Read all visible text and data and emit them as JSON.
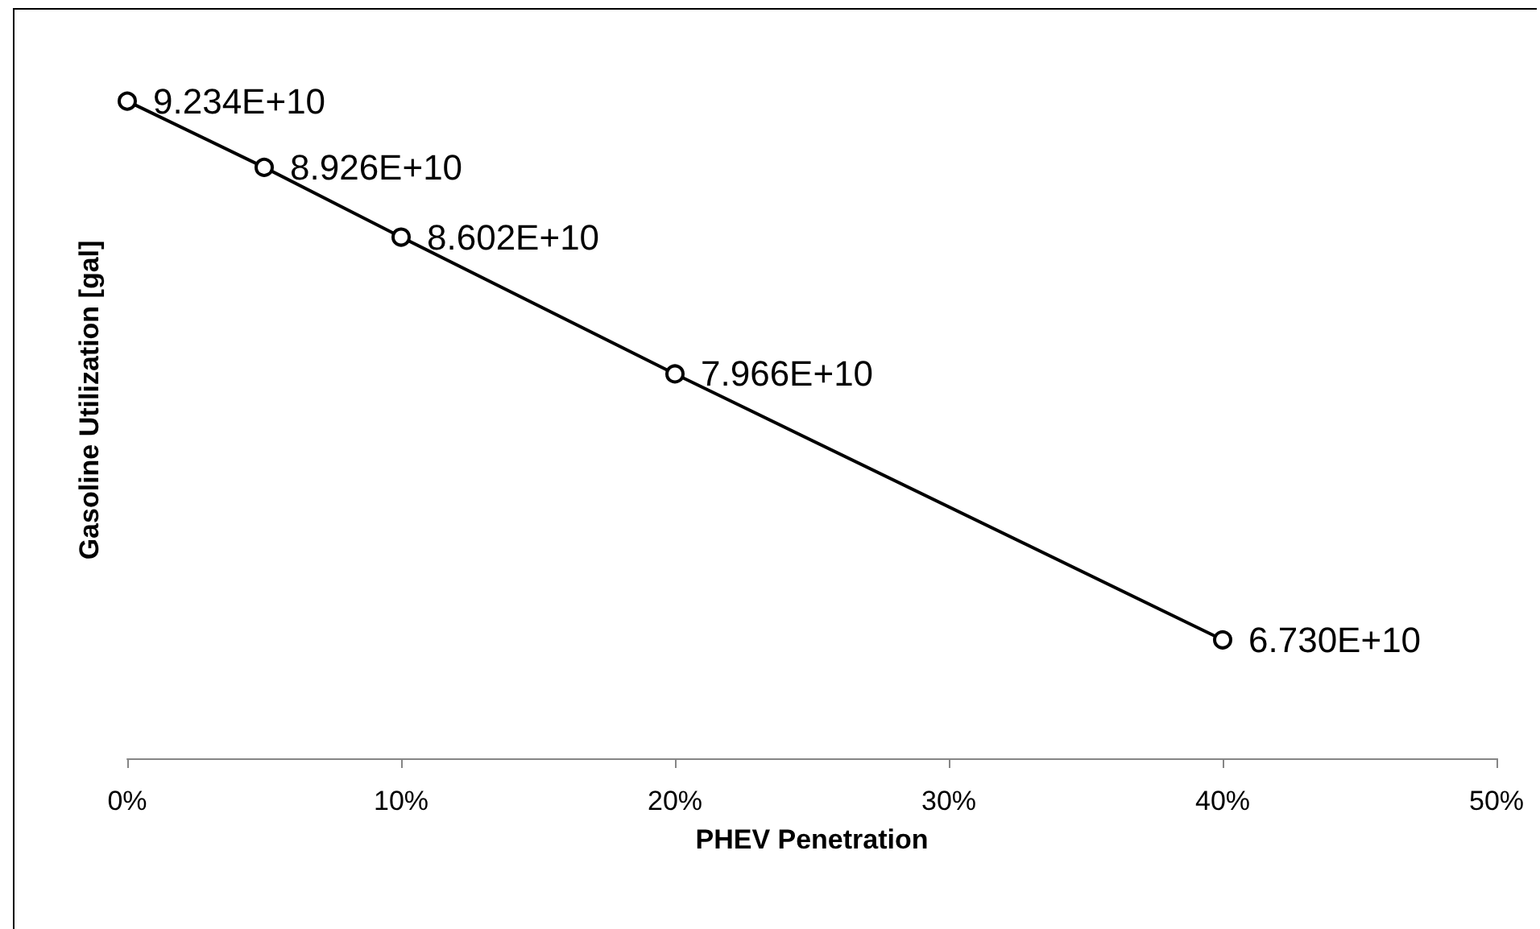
{
  "chart_data": {
    "type": "line",
    "xlabel": "PHEV Penetration",
    "ylabel": "Gasoline Utilization [gal]",
    "x": [
      0,
      5,
      10,
      20,
      40
    ],
    "series": [
      {
        "color": "#000000",
        "values": [
          92340000000,
          89260000000,
          86020000000,
          79660000000,
          67300000000
        ],
        "value_labels": [
          "9.234E+10",
          "8.926E+10",
          "8.602E+10",
          "7.966E+10",
          "6.730E+10"
        ]
      }
    ],
    "xlim": [
      0,
      50
    ],
    "xticks": [
      {
        "value": 0,
        "label": "0%"
      },
      {
        "value": 10,
        "label": "10%"
      },
      {
        "value": 20,
        "label": "20%"
      },
      {
        "value": 30,
        "label": "30%"
      },
      {
        "value": 40,
        "label": "40%"
      },
      {
        "value": 50,
        "label": "50%"
      }
    ],
    "tick_labels": "x",
    "marker": "circle",
    "line_style": "solid",
    "grid": false
  }
}
